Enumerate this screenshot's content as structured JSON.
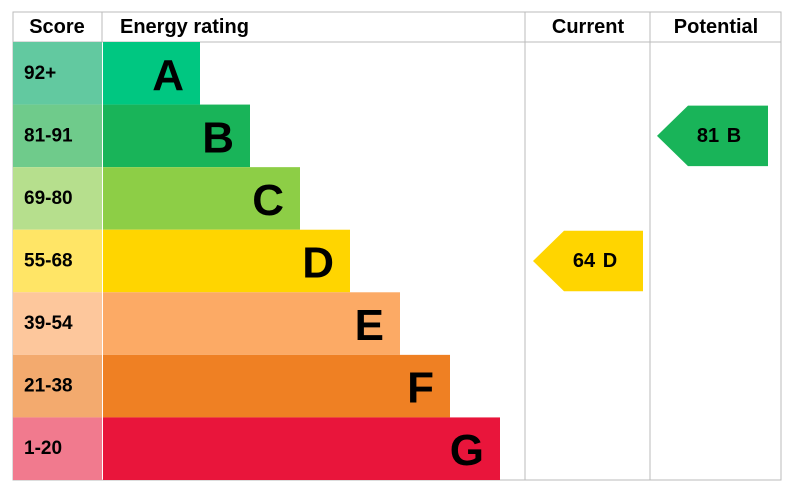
{
  "headers": {
    "score": "Score",
    "rating": "Energy rating",
    "current": "Current",
    "potential": "Potential"
  },
  "bands": [
    {
      "score": "92+",
      "letter": "A",
      "color": "#00c781",
      "score_color": "#62c9a0"
    },
    {
      "score": "81-91",
      "letter": "B",
      "color": "#19b459",
      "score_color": "#6fcb8b"
    },
    {
      "score": "69-80",
      "letter": "C",
      "color": "#8dce46",
      "score_color": "#b6df8d"
    },
    {
      "score": "55-68",
      "letter": "D",
      "color": "#ffd500",
      "score_color": "#ffe566"
    },
    {
      "score": "39-54",
      "letter": "E",
      "color": "#fcaa65",
      "score_color": "#fdc79c"
    },
    {
      "score": "21-38",
      "letter": "F",
      "color": "#ef8023",
      "score_color": "#f3aa6e"
    },
    {
      "score": "1-20",
      "letter": "G",
      "color": "#e9153b",
      "score_color": "#f17a8e"
    }
  ],
  "current": {
    "value": 64,
    "label": "D"
  },
  "potential": {
    "value": 81,
    "label": "B"
  }
}
